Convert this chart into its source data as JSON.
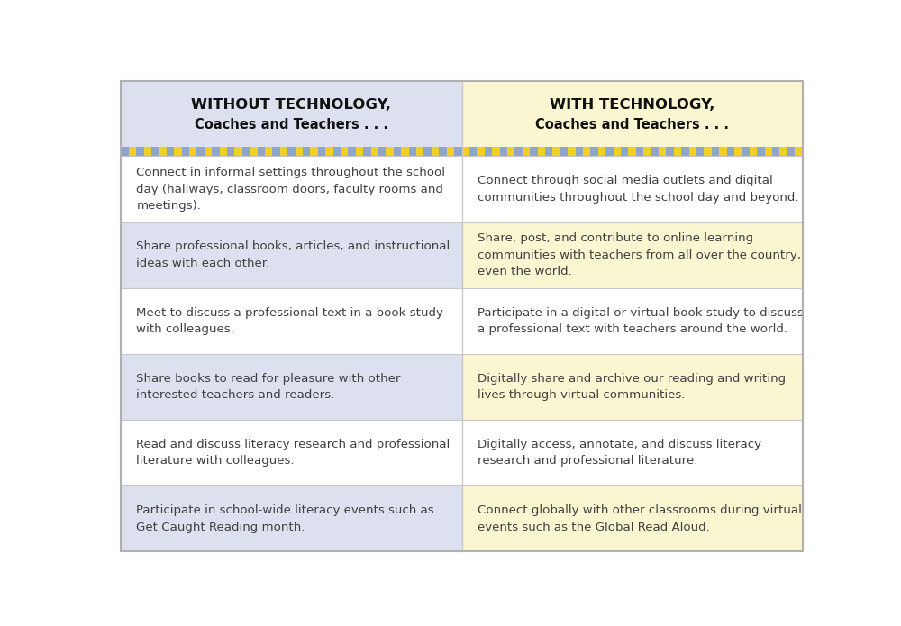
{
  "header_left": "WITHOUT TECHNOLOGY,",
  "header_left_sub": "Coaches and Teachers . . .",
  "header_right": "WITH TECHNOLOGY,",
  "header_right_sub": "Coaches and Teachers . . .",
  "header_bg_left": "#dde0ef",
  "header_bg_right": "#fbf6d2",
  "border_color_blue": "#8fa5cc",
  "border_color_yellow": "#f0d020",
  "rows": [
    {
      "left": "Connect in informal settings throughout the school\nday (hallways, classroom doors, faculty rooms and\nmeetings).",
      "right": "Connect through social media outlets and digital\ncommunities throughout the school day and beyond.",
      "left_bg": "#ffffff",
      "right_bg": "#ffffff"
    },
    {
      "left": "Share professional books, articles, and instructional\nideas with each other.",
      "right": "Share, post, and contribute to online learning\ncommunities with teachers from all over the country,\neven the world.",
      "left_bg": "#dde0ef",
      "right_bg": "#fbf6d2"
    },
    {
      "left": "Meet to discuss a professional text in a book study\nwith colleagues.",
      "right": "Participate in a digital or virtual book study to discuss\na professional text with teachers around the world.",
      "left_bg": "#ffffff",
      "right_bg": "#ffffff"
    },
    {
      "left": "Share books to read for pleasure with other\ninterested teachers and readers.",
      "right": "Digitally share and archive our reading and writing\nlives through virtual communities.",
      "left_bg": "#dde0ef",
      "right_bg": "#fbf6d2"
    },
    {
      "left": "Read and discuss literacy research and professional\nliterature with colleagues.",
      "right": "Digitally access, annotate, and discuss literacy\nresearch and professional literature.",
      "left_bg": "#ffffff",
      "right_bg": "#ffffff"
    },
    {
      "left": "Participate in school-wide literacy events such as\nGet Caught Reading month.",
      "right": "Connect globally with other classrooms during virtual\nevents such as the Global Read Aloud.",
      "left_bg": "#dde0ef",
      "right_bg": "#fbf6d2"
    }
  ],
  "outer_border_color": "#b0b0b0",
  "divider_color": "#c8c8c8",
  "text_color": "#404040",
  "header_text_color": "#111111",
  "fig_width": 10.0,
  "fig_height": 6.95,
  "dpi": 100
}
